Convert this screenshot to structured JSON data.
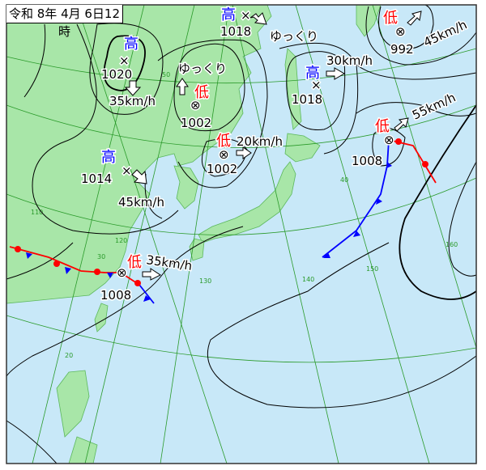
{
  "title": "令和 8年 4月 6日12時",
  "colors": {
    "sea": "#c8e8f8",
    "land": "#a8e6a8",
    "grid": "#2a9a2a",
    "high": "#0000ff",
    "low": "#ff0000",
    "warm_front": "#ff0000",
    "cold_front": "#0000ff"
  },
  "systems": [
    {
      "type": "high",
      "symbol": "高",
      "pressure": "1020",
      "movement": "35km/h"
    },
    {
      "type": "high",
      "symbol": "高",
      "pressure": "1018",
      "movement": "ゆっくり"
    },
    {
      "type": "low",
      "symbol": "低",
      "pressure": "1002",
      "movement": "ゆっくり"
    },
    {
      "type": "low",
      "symbol": "低",
      "pressure": "1002",
      "movement": "20km/h"
    },
    {
      "type": "high",
      "symbol": "高",
      "pressure": "1014",
      "movement": "45km/h"
    },
    {
      "type": "high",
      "symbol": "高",
      "pressure": "1018",
      "movement": "30km/h"
    },
    {
      "type": "low",
      "symbol": "低",
      "pressure": "992",
      "movement": "45km/h"
    },
    {
      "type": "low",
      "symbol": "低",
      "pressure": "1008",
      "movement": "55km/h"
    },
    {
      "type": "low",
      "symbol": "低",
      "pressure": "1008",
      "movement": "35km/h"
    }
  ],
  "grid_labels": {
    "lat": [
      "50",
      "40",
      "30",
      "20"
    ],
    "lon": [
      "110",
      "120",
      "130",
      "140",
      "150",
      "160"
    ]
  }
}
